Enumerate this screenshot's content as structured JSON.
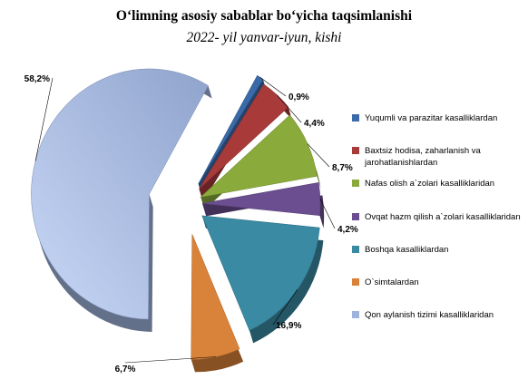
{
  "title": "O‘limning asosiy sabablar bo‘yicha taqsimlanishi",
  "subtitle": "2022- yil yanvar-iyun, kishi",
  "chart_data": {
    "type": "pie",
    "title": "O‘limning asosiy sabablar bo‘yicha taqsimlanishi",
    "subtitle": "2022- yil yanvar-iyun, kishi",
    "legend_position": "right",
    "style": "3d-exploded",
    "categories": [
      "Yuqumli va parazitar kasalliklardan",
      "Baxtsiz hodisa, zaharlanish va jarohatlanishlardan",
      "Nafas olish a`zolari kasalliklaridan",
      "Ovqat hazm qilish a`zolari kasalliklaridan",
      "Boshqa kasalliklardan",
      "O`simtalardan",
      "Qon aylanish tizimi kasalliklaridan"
    ],
    "values": [
      0.9,
      4.4,
      8.7,
      4.2,
      16.9,
      6.7,
      58.2
    ],
    "data_labels": [
      "0,9%",
      "4,4%",
      "8,7%",
      "4,2%",
      "16,9%",
      "6,7%",
      "58,2%"
    ],
    "colors": [
      "#3b6aa8",
      "#a83a3a",
      "#8aab3c",
      "#6b4e8f",
      "#3a8aa3",
      "#d9823a",
      "#9fb4dd"
    ]
  }
}
